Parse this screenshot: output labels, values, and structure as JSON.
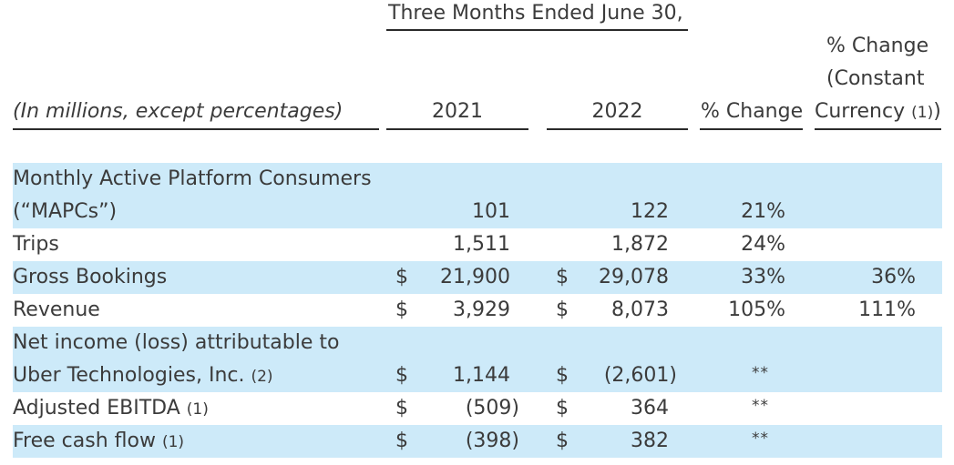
{
  "header": {
    "period": "Three Months Ended June 30,",
    "pct_change_const_line1": "% Change",
    "pct_change_const_line2": "(Constant",
    "pct_change_const_line3": "Currency",
    "pct_change_const_fn": "(1)",
    "pct_change_const_close": ")",
    "units": "(In millions, except percentages)",
    "year1": "2021",
    "year2": "2022",
    "pct_change": "% Change"
  },
  "rows": [
    {
      "label1": "Monthly Active Platform Consumers",
      "label2": "(“MAPCs”)",
      "v2021": "101",
      "v2022": "122",
      "pct": "21%"
    },
    {
      "label": "Trips",
      "v2021": "1,511",
      "v2022": "1,872",
      "pct": "24%"
    },
    {
      "label": "Gross Bookings",
      "cur1": "$",
      "v2021": "21,900",
      "cur2": "$",
      "v2022": "29,078",
      "pct": "33%",
      "pct_const": "36%"
    },
    {
      "label": "Revenue",
      "cur1": "$",
      "v2021": "3,929",
      "cur2": "$",
      "v2022": "8,073",
      "pct": "105%",
      "pct_const": "111%"
    },
    {
      "label1": "Net income (loss) attributable to",
      "label2": "Uber Technologies, Inc.",
      "fn": "(2)",
      "cur1": "$",
      "v2021": "1,144",
      "cur2": "$",
      "v2022": "(2,601)",
      "pct": "**"
    },
    {
      "label": "Adjusted EBITDA",
      "fn": "(1)",
      "cur1": "$",
      "v2021": "(509)",
      "cur2": "$",
      "v2022": "364",
      "pct": "**"
    },
    {
      "label": "Free cash flow",
      "fn": "(1)",
      "cur1": "$",
      "v2021": "(398)",
      "cur2": "$",
      "v2022": "382",
      "pct": "**"
    }
  ],
  "colors": {
    "band": "#cdeaf9",
    "text": "#3b3b3b"
  }
}
